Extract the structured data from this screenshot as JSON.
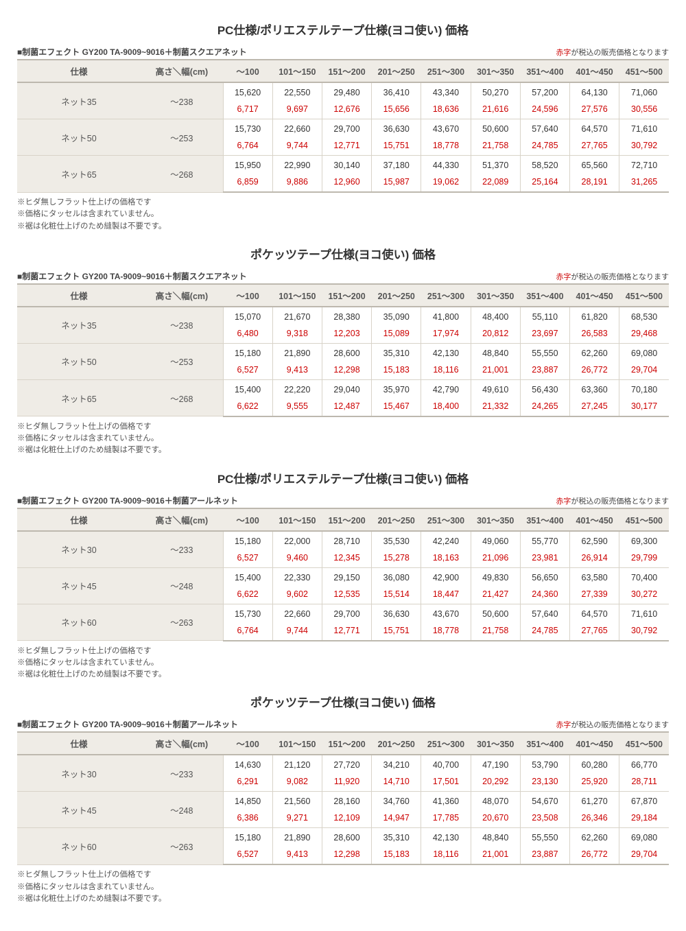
{
  "colors": {
    "header_bg": "#efece6",
    "border_strong": "#bdb8ae",
    "border_light": "#d8d3c8",
    "text": "#333333",
    "red": "#cc0000"
  },
  "columns": {
    "spec": "仕様",
    "height": "高さ＼幅(cm)",
    "widths": [
      "～100",
      "101～150",
      "151～200",
      "201～250",
      "251～300",
      "301～350",
      "351～400",
      "401～450",
      "451～500"
    ]
  },
  "notes": [
    "※ヒダ無しフラット仕上げの価格です",
    "※価格にタッセルは含まれていません。",
    "※裾は化粧仕上げのため縫製は不要です。"
  ],
  "sections": [
    {
      "title": "PC仕様/ポリエステルテープ仕様(ヨコ使い)  価格",
      "preheader_left": "■制菌エフェクト GY200 TA-9009~9016＋制菌スクエアネット",
      "preheader_right_red": "赤字",
      "preheader_right_rest": "が税込の販売価格となります",
      "rows": [
        {
          "spec": "ネット35",
          "height": "～238",
          "black": [
            "15,620",
            "22,550",
            "29,480",
            "36,410",
            "43,340",
            "50,270",
            "57,200",
            "64,130",
            "71,060"
          ],
          "red": [
            "6,717",
            "9,697",
            "12,676",
            "15,656",
            "18,636",
            "21,616",
            "24,596",
            "27,576",
            "30,556"
          ]
        },
        {
          "spec": "ネット50",
          "height": "～253",
          "black": [
            "15,730",
            "22,660",
            "29,700",
            "36,630",
            "43,670",
            "50,600",
            "57,640",
            "64,570",
            "71,610"
          ],
          "red": [
            "6,764",
            "9,744",
            "12,771",
            "15,751",
            "18,778",
            "21,758",
            "24,785",
            "27,765",
            "30,792"
          ]
        },
        {
          "spec": "ネット65",
          "height": "～268",
          "black": [
            "15,950",
            "22,990",
            "30,140",
            "37,180",
            "44,330",
            "51,370",
            "58,520",
            "65,560",
            "72,710"
          ],
          "red": [
            "6,859",
            "9,886",
            "12,960",
            "15,987",
            "19,062",
            "22,089",
            "25,164",
            "28,191",
            "31,265"
          ]
        }
      ]
    },
    {
      "title": "ポケッツテープ仕様(ヨコ使い)  価格",
      "preheader_left": "■制菌エフェクト GY200 TA-9009~9016＋制菌スクエアネット",
      "preheader_right_red": "赤字",
      "preheader_right_rest": "が税込の販売価格となります",
      "rows": [
        {
          "spec": "ネット35",
          "height": "～238",
          "black": [
            "15,070",
            "21,670",
            "28,380",
            "35,090",
            "41,800",
            "48,400",
            "55,110",
            "61,820",
            "68,530"
          ],
          "red": [
            "6,480",
            "9,318",
            "12,203",
            "15,089",
            "17,974",
            "20,812",
            "23,697",
            "26,583",
            "29,468"
          ]
        },
        {
          "spec": "ネット50",
          "height": "～253",
          "black": [
            "15,180",
            "21,890",
            "28,600",
            "35,310",
            "42,130",
            "48,840",
            "55,550",
            "62,260",
            "69,080"
          ],
          "red": [
            "6,527",
            "9,413",
            "12,298",
            "15,183",
            "18,116",
            "21,001",
            "23,887",
            "26,772",
            "29,704"
          ]
        },
        {
          "spec": "ネット65",
          "height": "～268",
          "black": [
            "15,400",
            "22,220",
            "29,040",
            "35,970",
            "42,790",
            "49,610",
            "56,430",
            "63,360",
            "70,180"
          ],
          "red": [
            "6,622",
            "9,555",
            "12,487",
            "15,467",
            "18,400",
            "21,332",
            "24,265",
            "27,245",
            "30,177"
          ]
        }
      ]
    },
    {
      "title": "PC仕様/ポリエステルテープ仕様(ヨコ使い)  価格",
      "preheader_left": "■制菌エフェクト GY200 TA-9009~9016＋制菌アールネット",
      "preheader_right_red": "赤字",
      "preheader_right_rest": "が税込の販売価格となります",
      "rows": [
        {
          "spec": "ネット30",
          "height": "～233",
          "black": [
            "15,180",
            "22,000",
            "28,710",
            "35,530",
            "42,240",
            "49,060",
            "55,770",
            "62,590",
            "69,300"
          ],
          "red": [
            "6,527",
            "9,460",
            "12,345",
            "15,278",
            "18,163",
            "21,096",
            "23,981",
            "26,914",
            "29,799"
          ]
        },
        {
          "spec": "ネット45",
          "height": "～248",
          "black": [
            "15,400",
            "22,330",
            "29,150",
            "36,080",
            "42,900",
            "49,830",
            "56,650",
            "63,580",
            "70,400"
          ],
          "red": [
            "6,622",
            "9,602",
            "12,535",
            "15,514",
            "18,447",
            "21,427",
            "24,360",
            "27,339",
            "30,272"
          ]
        },
        {
          "spec": "ネット60",
          "height": "～263",
          "black": [
            "15,730",
            "22,660",
            "29,700",
            "36,630",
            "43,670",
            "50,600",
            "57,640",
            "64,570",
            "71,610"
          ],
          "red": [
            "6,764",
            "9,744",
            "12,771",
            "15,751",
            "18,778",
            "21,758",
            "24,785",
            "27,765",
            "30,792"
          ]
        }
      ]
    },
    {
      "title": "ポケッツテープ仕様(ヨコ使い)  価格",
      "preheader_left": "■制菌エフェクト GY200 TA-9009~9016＋制菌アールネット",
      "preheader_right_red": "赤字",
      "preheader_right_rest": "が税込の販売価格となります",
      "rows": [
        {
          "spec": "ネット30",
          "height": "～233",
          "black": [
            "14,630",
            "21,120",
            "27,720",
            "34,210",
            "40,700",
            "47,190",
            "53,790",
            "60,280",
            "66,770"
          ],
          "red": [
            "6,291",
            "9,082",
            "11,920",
            "14,710",
            "17,501",
            "20,292",
            "23,130",
            "25,920",
            "28,711"
          ]
        },
        {
          "spec": "ネット45",
          "height": "～248",
          "black": [
            "14,850",
            "21,560",
            "28,160",
            "34,760",
            "41,360",
            "48,070",
            "54,670",
            "61,270",
            "67,870"
          ],
          "red": [
            "6,386",
            "9,271",
            "12,109",
            "14,947",
            "17,785",
            "20,670",
            "23,508",
            "26,346",
            "29,184"
          ]
        },
        {
          "spec": "ネット60",
          "height": "～263",
          "black": [
            "15,180",
            "21,890",
            "28,600",
            "35,310",
            "42,130",
            "48,840",
            "55,550",
            "62,260",
            "69,080"
          ],
          "red": [
            "6,527",
            "9,413",
            "12,298",
            "15,183",
            "18,116",
            "21,001",
            "23,887",
            "26,772",
            "29,704"
          ]
        }
      ]
    }
  ]
}
